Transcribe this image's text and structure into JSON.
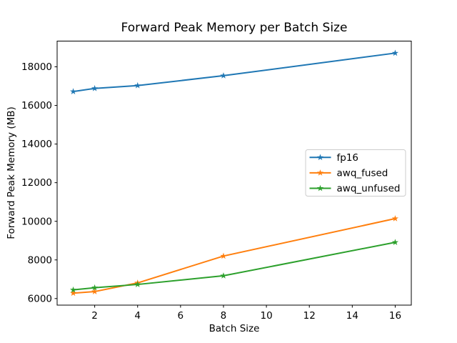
{
  "chart_data": {
    "type": "line",
    "title": "Forward Peak Memory per Batch Size",
    "xlabel": "Batch Size",
    "ylabel": "Forward Peak Memory (MB)",
    "x": [
      1,
      2,
      4,
      8,
      16
    ],
    "series": [
      {
        "name": "fp16",
        "color": "#1f77b4",
        "marker": "star",
        "values": [
          16720,
          16880,
          17030,
          17540,
          18710
        ]
      },
      {
        "name": "awq_fused",
        "color": "#ff7f0e",
        "marker": "star",
        "values": [
          6280,
          6360,
          6810,
          8200,
          10140
        ]
      },
      {
        "name": "awq_unfused",
        "color": "#2ca02c",
        "marker": "star",
        "values": [
          6450,
          6560,
          6730,
          7180,
          8910
        ]
      }
    ],
    "x_ticks": [
      2,
      4,
      6,
      8,
      10,
      12,
      14,
      16
    ],
    "y_ticks": [
      6000,
      8000,
      10000,
      12000,
      14000,
      16000,
      18000
    ],
    "xlim": [
      0.25,
      16.75
    ],
    "ylim": [
      5659,
      19332
    ],
    "grid": false,
    "legend": {
      "position": "center-right",
      "entries": [
        "fp16",
        "awq_fused",
        "awq_unfused"
      ]
    },
    "background": "#ffffff",
    "text_color": "#000000",
    "spine_color": "#000000",
    "legend_border_color": "#cccccc"
  }
}
